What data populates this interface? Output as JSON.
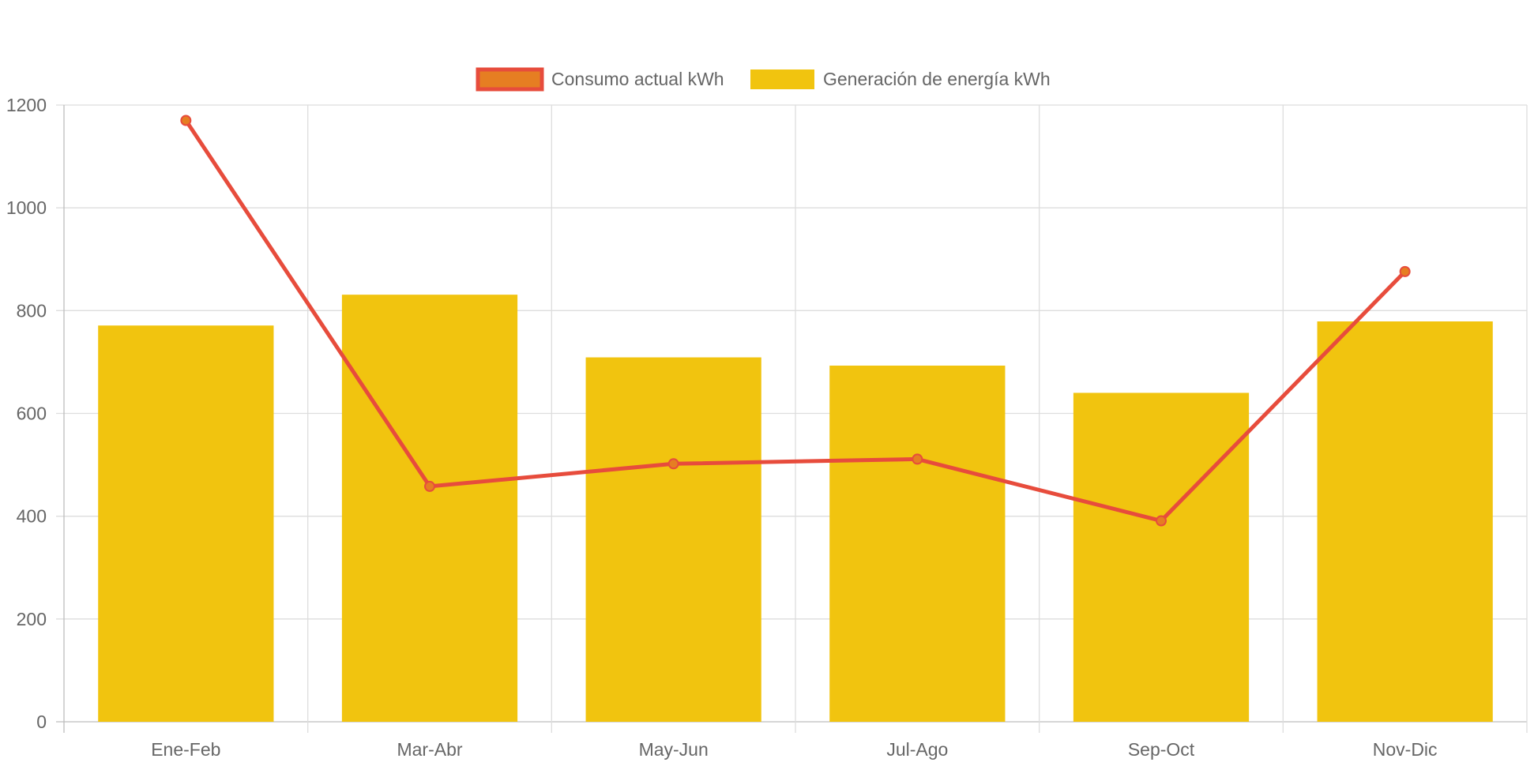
{
  "chart_data": {
    "type": "bar",
    "title": "",
    "xlabel": "",
    "ylabel": "",
    "categories": [
      "Ene-Feb",
      "Mar-Abr",
      "May-Jun",
      "Jul-Ago",
      "Sep-Oct",
      "Nov-Dic"
    ],
    "ylim": [
      0,
      1200
    ],
    "yticks": [
      0,
      200,
      400,
      600,
      800,
      1000,
      1200
    ],
    "grid": true,
    "legend_position": "top-center",
    "series": [
      {
        "name": "Consumo actual kWh",
        "type": "line",
        "values": [
          1170,
          458,
          502,
          511,
          391,
          876
        ],
        "line_color": "#e74c3c",
        "point_color": "#e67e22"
      },
      {
        "name": "Generación de energía kWh",
        "type": "bar",
        "values": [
          771,
          831,
          709,
          693,
          640,
          779
        ],
        "color": "#f1c40f"
      }
    ]
  }
}
